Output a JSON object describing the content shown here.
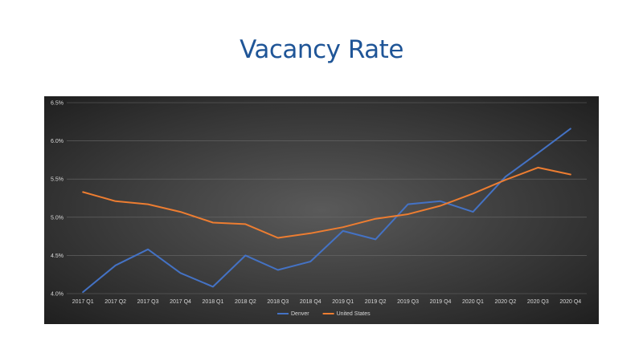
{
  "slide": {
    "title": "Vacancy Rate"
  },
  "colors": {
    "denver": "#4472c4",
    "united_states": "#ed7d31",
    "grid": "#6a6a6a",
    "text": "#d9d9d9"
  },
  "chart_data": {
    "type": "line",
    "title": "Vacancy Rate",
    "xlabel": "",
    "ylabel": "",
    "categories": [
      "2017 Q1",
      "2017 Q2",
      "2017 Q3",
      "2017 Q4",
      "2018 Q1",
      "2018 Q2",
      "2018 Q3",
      "2018 Q4",
      "2019 Q1",
      "2019 Q2",
      "2019 Q3",
      "2019 Q4",
      "2020 Q1",
      "2020 Q2",
      "2020 Q3",
      "2020 Q4"
    ],
    "y_tick_labels": [
      "4.0%",
      "4.5%",
      "5.0%",
      "5.5%",
      "6.0%",
      "6.5%"
    ],
    "ylim": [
      4.0,
      6.5
    ],
    "grid": true,
    "legend_position": "bottom",
    "series": [
      {
        "name": "Denver",
        "color": "#4472c4",
        "values": [
          4.02,
          4.37,
          4.58,
          4.27,
          4.09,
          4.5,
          4.31,
          4.42,
          4.82,
          4.71,
          5.17,
          5.21,
          5.07,
          5.53,
          5.84,
          6.16
        ]
      },
      {
        "name": "United States",
        "color": "#ed7d31",
        "values": [
          5.33,
          5.21,
          5.17,
          5.07,
          4.93,
          4.91,
          4.73,
          4.79,
          4.87,
          4.98,
          5.04,
          5.15,
          5.31,
          5.49,
          5.65,
          5.56
        ]
      }
    ]
  }
}
